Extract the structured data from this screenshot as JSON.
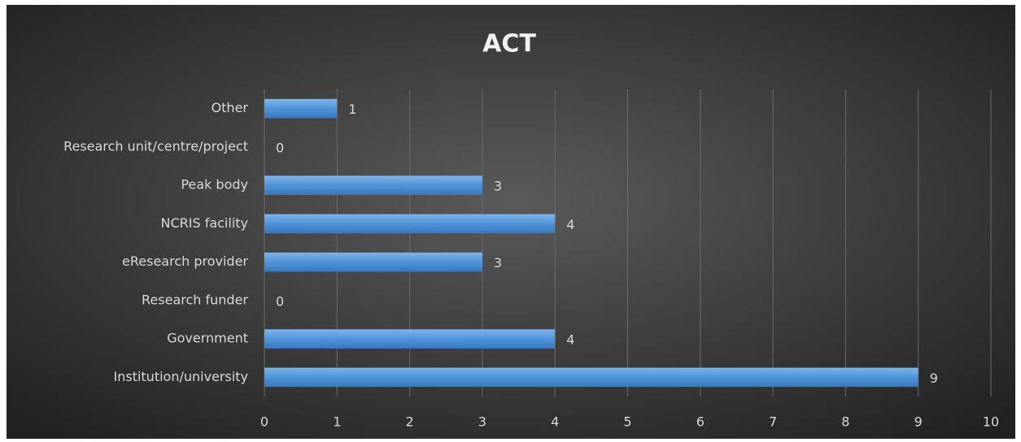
{
  "chart_data": {
    "type": "bar",
    "orientation": "horizontal",
    "title": "ACT",
    "categories": [
      "Other",
      "Research unit/centre/project",
      "Peak body",
      "NCRIS facility",
      "eResearch provider",
      "Research funder",
      "Government",
      "Institution/university"
    ],
    "values": [
      1,
      0,
      3,
      4,
      3,
      0,
      4,
      9
    ],
    "color": "#4f94d8",
    "xlim": [
      0,
      10
    ],
    "xticks": [
      0,
      1,
      2,
      3,
      4,
      5,
      6,
      7,
      8,
      9,
      10
    ],
    "grid": true
  }
}
